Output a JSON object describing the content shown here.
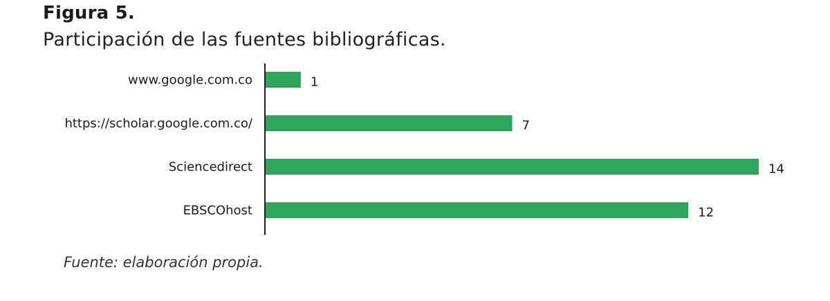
{
  "figure": {
    "label": "Figura 5.",
    "caption": "Participación de las fuentes bibliográficas.",
    "source": "Fuente: elaboración propia."
  },
  "colors": {
    "bar": "#2FA55B",
    "axis": "#1a1a1a"
  },
  "chart_data": {
    "type": "bar",
    "orientation": "horizontal",
    "categories": [
      "www.google.com.co",
      "https://scholar.google.com.co/",
      "Sciencedirect",
      "EBSCOhost"
    ],
    "values": [
      1,
      7,
      14,
      12
    ],
    "data_labels": [
      "1",
      "7",
      "14",
      "12"
    ],
    "title": "",
    "xlabel": "",
    "ylabel": "",
    "xlim": [
      0,
      14
    ],
    "grid": false,
    "legend": "none"
  }
}
